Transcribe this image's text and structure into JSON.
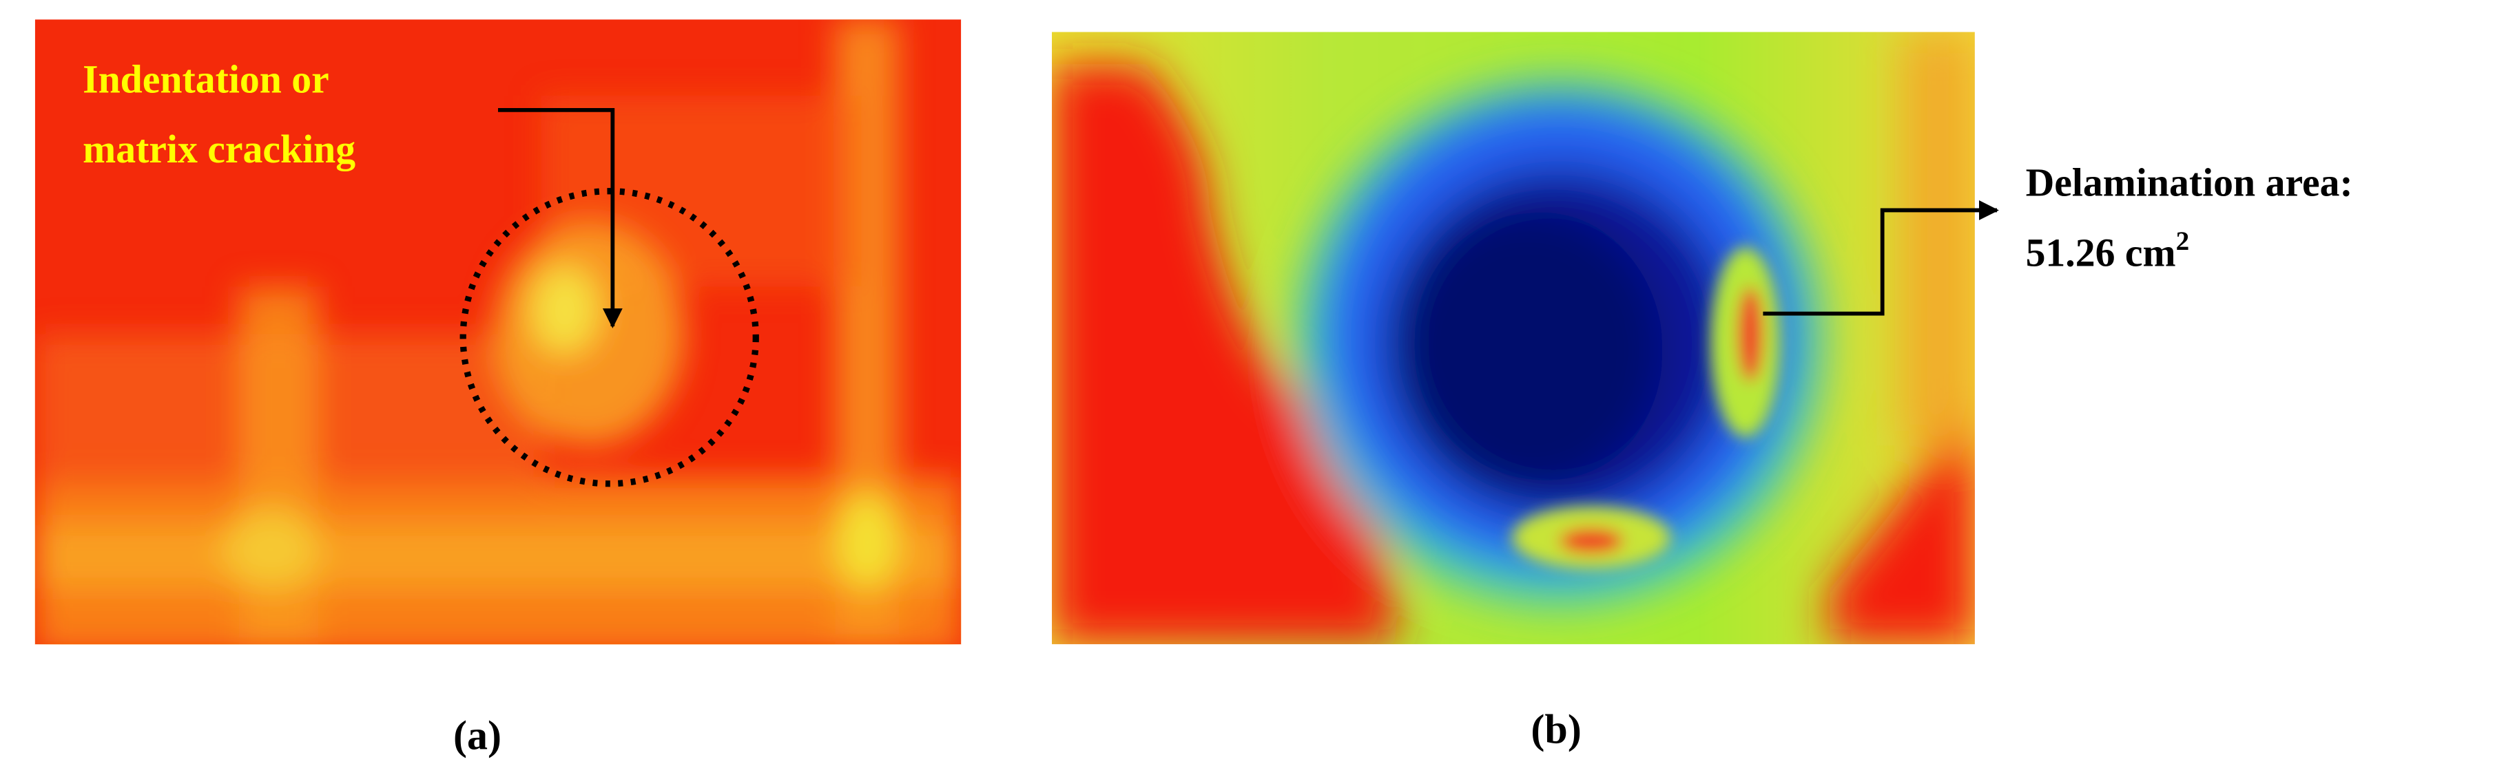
{
  "panel_a": {
    "annotation": [
      "Indentation or",
      "matrix cracking"
    ],
    "label": "(a)"
  },
  "panel_b": {
    "annotation": "Delamination area:",
    "area": "51.26 cm",
    "area_exponent": "2",
    "label": "(b)"
  }
}
